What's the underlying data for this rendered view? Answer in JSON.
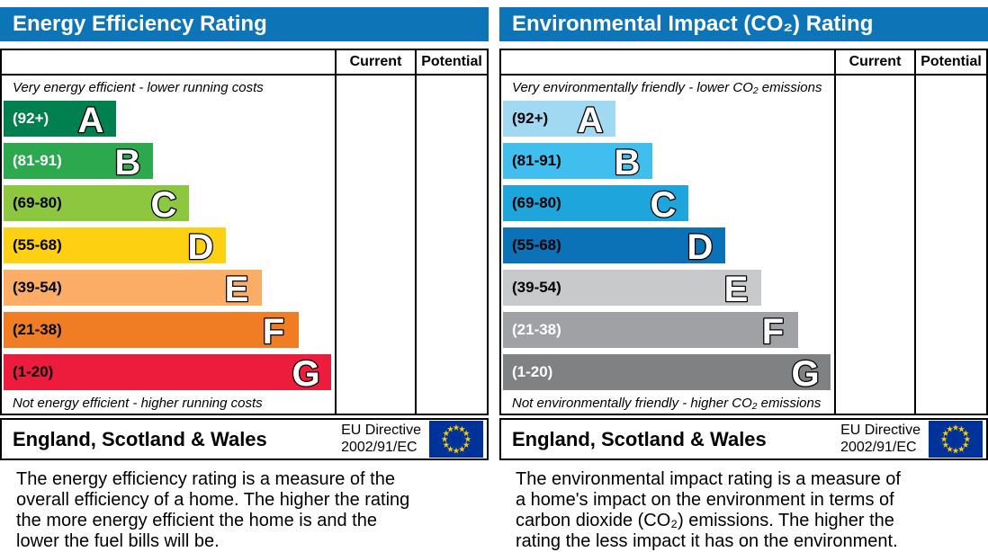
{
  "ui_colors": {
    "header_bg": "#0e74b8",
    "header_text": "#ffffff",
    "table_border": "#000000",
    "flag_bg": "#003399",
    "flag_star": "#ffcc00"
  },
  "panels": [
    {
      "title": "Energy Efficiency Rating",
      "columns": {
        "current": "Current",
        "potential": "Potential"
      },
      "top_caption": "Very energy efficient - lower running costs",
      "bottom_caption": "Not energy efficient - higher running costs",
      "bands": [
        {
          "letter": "A",
          "range": "(92+)",
          "color": "#00804e",
          "label_color": "#ffffff",
          "width_pct": 34
        },
        {
          "letter": "B",
          "range": "(81-91)",
          "color": "#2ca94f",
          "label_color": "#ffffff",
          "width_pct": 45
        },
        {
          "letter": "C",
          "range": "(69-80)",
          "color": "#8dc63f",
          "label_color": "#000000",
          "width_pct": 56
        },
        {
          "letter": "D",
          "range": "(55-68)",
          "color": "#fed012",
          "label_color": "#000000",
          "width_pct": 67
        },
        {
          "letter": "E",
          "range": "(39-54)",
          "color": "#fbad66",
          "label_color": "#000000",
          "width_pct": 78
        },
        {
          "letter": "F",
          "range": "(21-38)",
          "color": "#f07d23",
          "label_color": "#000000",
          "width_pct": 89
        },
        {
          "letter": "G",
          "range": "(1-20)",
          "color": "#ed1c3c",
          "label_color": "#000000",
          "width_pct": 99
        }
      ],
      "footer": {
        "region": "England, Scotland & Wales",
        "directive_line1": "EU Directive",
        "directive_line2": "2002/91/EC"
      },
      "description": "The energy efficiency rating is a measure of the\noverall efficiency of a home. The higher the rating\nthe more energy efficient the home is and the\nlower the fuel bills will be."
    },
    {
      "title": "Environmental Impact (CO₂) Rating",
      "columns": {
        "current": "Current",
        "potential": "Potential"
      },
      "top_caption": "Very environmentally friendly - lower CO₂ emissions",
      "bottom_caption": "Not environmentally friendly - higher CO₂ emissions",
      "bands": [
        {
          "letter": "A",
          "range": "(92+)",
          "color": "#a2d9f2",
          "label_color": "#000000",
          "width_pct": 34
        },
        {
          "letter": "B",
          "range": "(81-91)",
          "color": "#40bfef",
          "label_color": "#000000",
          "width_pct": 45
        },
        {
          "letter": "C",
          "range": "(69-80)",
          "color": "#1ea5dc",
          "label_color": "#000000",
          "width_pct": 56
        },
        {
          "letter": "D",
          "range": "(55-68)",
          "color": "#0c72b8",
          "label_color": "#000000",
          "width_pct": 67
        },
        {
          "letter": "E",
          "range": "(39-54)",
          "color": "#c8c9cb",
          "label_color": "#000000",
          "width_pct": 78
        },
        {
          "letter": "F",
          "range": "(21-38)",
          "color": "#9fa1a4",
          "label_color": "#ffffff",
          "width_pct": 89
        },
        {
          "letter": "G",
          "range": "(1-20)",
          "color": "#7f8183",
          "label_color": "#ffffff",
          "width_pct": 99
        }
      ],
      "footer": {
        "region": "England, Scotland & Wales",
        "directive_line1": "EU Directive",
        "directive_line2": "2002/91/EC"
      },
      "description": "The environmental impact rating is a measure of\na home's impact on the environment in terms of\ncarbon dioxide (CO₂) emissions. The higher the\nrating the less impact it has on the environment."
    }
  ],
  "chart_data": [
    {
      "type": "bar",
      "orientation": "horizontal",
      "title": "Energy Efficiency Rating",
      "categories": [
        "A",
        "B",
        "C",
        "D",
        "E",
        "F",
        "G"
      ],
      "band_ranges": [
        "92+",
        "81-91",
        "69-80",
        "55-68",
        "39-54",
        "21-38",
        "1-20"
      ],
      "values": [
        34,
        45,
        56,
        67,
        78,
        89,
        99
      ],
      "value_meaning": "fixed EPC band bar width, % of scale area",
      "colors": [
        "#00804e",
        "#2ca94f",
        "#8dc63f",
        "#fed012",
        "#fbad66",
        "#f07d23",
        "#ed1c3c"
      ],
      "columns": [
        "Current",
        "Potential"
      ],
      "current_value": null,
      "potential_value": null,
      "top_annotation": "Very energy efficient - lower running costs",
      "bottom_annotation": "Not energy efficient - higher running costs"
    },
    {
      "type": "bar",
      "orientation": "horizontal",
      "title": "Environmental Impact (CO₂) Rating",
      "categories": [
        "A",
        "B",
        "C",
        "D",
        "E",
        "F",
        "G"
      ],
      "band_ranges": [
        "92+",
        "81-91",
        "69-80",
        "55-68",
        "39-54",
        "21-38",
        "1-20"
      ],
      "values": [
        34,
        45,
        56,
        67,
        78,
        89,
        99
      ],
      "value_meaning": "fixed EPC band bar width, % of scale area",
      "colors": [
        "#a2d9f2",
        "#40bfef",
        "#1ea5dc",
        "#0c72b8",
        "#c8c9cb",
        "#9fa1a4",
        "#7f8183"
      ],
      "columns": [
        "Current",
        "Potential"
      ],
      "current_value": null,
      "potential_value": null,
      "top_annotation": "Very environmentally friendly - lower CO₂ emissions",
      "bottom_annotation": "Not environmentally friendly - higher CO₂ emissions"
    }
  ]
}
